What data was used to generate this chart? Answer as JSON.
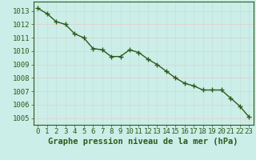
{
  "x": [
    0,
    1,
    2,
    3,
    4,
    5,
    6,
    7,
    8,
    9,
    10,
    11,
    12,
    13,
    14,
    15,
    16,
    17,
    18,
    19,
    20,
    21,
    22,
    23
  ],
  "y": [
    1013.2,
    1012.8,
    1012.2,
    1012.0,
    1011.3,
    1011.0,
    1010.2,
    1010.1,
    1009.6,
    1009.6,
    1010.1,
    1009.9,
    1009.4,
    1009.0,
    1008.5,
    1008.0,
    1007.6,
    1007.4,
    1007.1,
    1007.1,
    1007.1,
    1006.5,
    1005.9,
    1005.1
  ],
  "line_color": "#2d5a1b",
  "marker": "+",
  "marker_size": 4,
  "marker_color": "#2d5a1b",
  "bg_color": "#cceee8",
  "grid_color_h": "#e8c8c8",
  "grid_color_v": "#c8dcd8",
  "xlabel": "Graphe pression niveau de la mer (hPa)",
  "xlabel_color": "#2d5a1b",
  "xlabel_fontsize": 7.5,
  "ylabel_ticks": [
    1005,
    1006,
    1007,
    1008,
    1009,
    1010,
    1011,
    1012,
    1013
  ],
  "ylim": [
    1004.5,
    1013.7
  ],
  "xlim": [
    -0.5,
    23.5
  ],
  "tick_color": "#2d5a1b",
  "tick_fontsize": 6.5,
  "line_width": 1.0,
  "marker_edge_width": 1.0
}
